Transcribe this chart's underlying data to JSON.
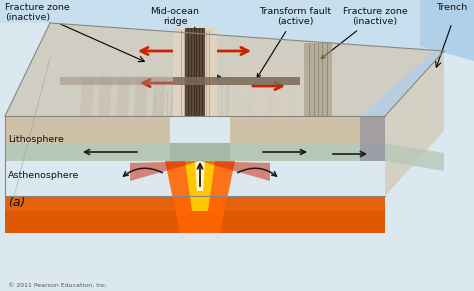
{
  "labels": {
    "mid_ocean_ridge": "Mid-ocean\nridge",
    "transform_fault": "Transform fault\n(active)",
    "fracture_zone_right": "Fracture zone\n(inactive)",
    "fracture_zone_left": "Fracture zone\n(inactive)",
    "trench": "Trench",
    "lithosphere": "Lithosphere",
    "asthenosphere": "Asthenosphere",
    "panel_label": "(a)"
  },
  "copyright": "© 2011 Pearson Education, Inc.",
  "colors": {
    "sky_blue": "#c8dff0",
    "sky_blue2": "#b0cfe8",
    "water_blue": "#b8d8ec",
    "seafloor_tan": "#d8cbb8",
    "seafloor_tan2": "#cfc0a8",
    "seafloor_light": "#e0d4c0",
    "ridge_stripe": "#7a6858",
    "ridge_dark": "#5a4838",
    "fault_gray": "#a89878",
    "litho_gray": "#a8b8a8",
    "litho_gray2": "#98aa98",
    "litho_speckle": "#b8c8b8",
    "ast_orange": "#d04000",
    "ast_orange2": "#e05800",
    "ast_light": "#f07020",
    "magma_white": "#fff8e0",
    "magma_yellow": "#ffcc00",
    "magma_orange": "#ff6600",
    "magma_red": "#cc2200",
    "arrow_red": "#cc2200",
    "arrow_black": "#1a1a1a",
    "text_black": "#111111",
    "block_edge": "#888880",
    "background": "#dce8f0",
    "trench_wall": "#9090a0"
  },
  "figsize": [
    4.74,
    2.91
  ],
  "dpi": 100
}
